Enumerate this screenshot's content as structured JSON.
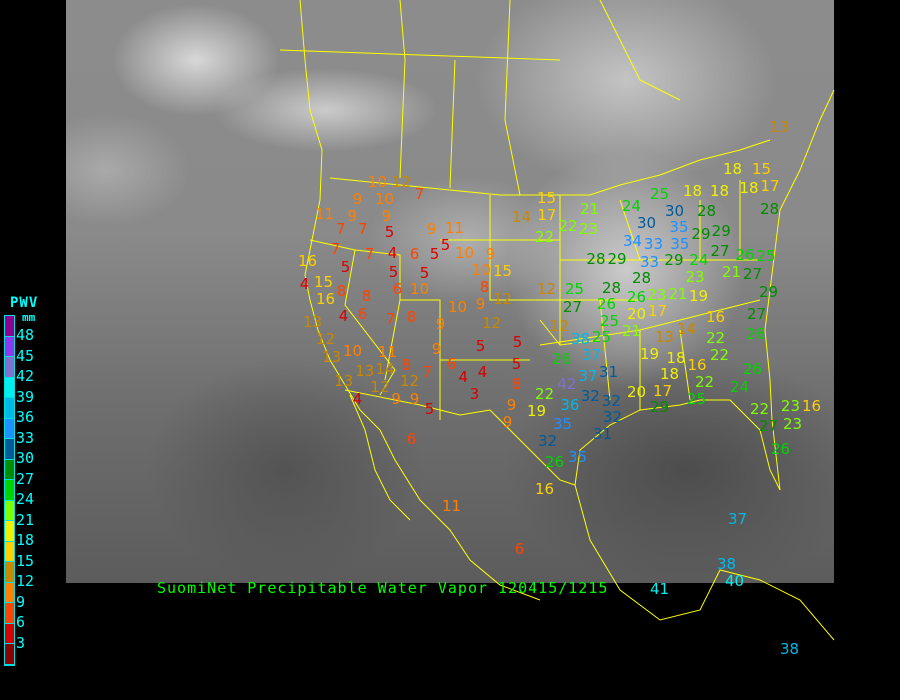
{
  "caption": "SuomiNet Precipitable Water Vapor 120415/1215",
  "legend": {
    "title": "PWV",
    "unit": "mm",
    "ticks": [
      "48",
      "45",
      "42",
      "39",
      "36",
      "33",
      "30",
      "27",
      "24",
      "21",
      "18",
      "15",
      "12",
      "9",
      "6",
      "3"
    ],
    "colors": [
      "#900090",
      "#9038f0",
      "#8070d0",
      "#00f0f0",
      "#00b8e8",
      "#2090ff",
      "#005a98",
      "#008c00",
      "#00d400",
      "#80ff00",
      "#f0f000",
      "#ffd000",
      "#c88800",
      "#ff8000",
      "#ff4400",
      "#d80000",
      "#900000"
    ]
  },
  "stations": [
    "10",
    "12",
    "7",
    "9",
    "10",
    "9",
    "11",
    "9",
    "7",
    "7",
    "5",
    "7",
    "4",
    "6",
    "5",
    "7",
    "9",
    "11",
    "5",
    "10",
    "9",
    "16",
    "5",
    "5",
    "5",
    "10",
    "6",
    "15",
    "4",
    "16",
    "8",
    "8",
    "10",
    "15",
    "8",
    "10",
    "9",
    "12",
    "4",
    "6",
    "7",
    "8",
    "12",
    "9",
    "13",
    "12",
    "10",
    "13",
    "11",
    "14",
    "8",
    "9",
    "5",
    "5",
    "5",
    "6",
    "4",
    "4",
    "3",
    "7",
    "12",
    "13",
    "12",
    "13",
    "4",
    "9",
    "9",
    "5",
    "8",
    "9",
    "9",
    "19",
    "22",
    "6",
    "11",
    "6",
    "16",
    "15",
    "17",
    "14",
    "22",
    "22",
    "23",
    "21",
    "24",
    "25",
    "30",
    "30",
    "35",
    "35",
    "28",
    "28",
    "34",
    "33",
    "29",
    "29",
    "29",
    "24",
    "23",
    "27",
    "21",
    "26",
    "25",
    "27",
    "28",
    "29",
    "33",
    "28",
    "12",
    "25",
    "27",
    "28",
    "26",
    "26",
    "23",
    "21",
    "19",
    "29",
    "20",
    "17",
    "12",
    "25",
    "25",
    "21",
    "16",
    "14",
    "13",
    "22",
    "22",
    "27",
    "26",
    "38",
    "37",
    "26",
    "19",
    "18",
    "31",
    "37",
    "42",
    "18",
    "16",
    "22",
    "26",
    "20",
    "17",
    "25",
    "24",
    "32",
    "36",
    "32",
    "29",
    "22",
    "23",
    "16",
    "35",
    "32",
    "31",
    "27",
    "23",
    "32",
    "26",
    "35",
    "26",
    "18",
    "15",
    "18",
    "18",
    "17",
    "13",
    "18",
    "37",
    "38",
    "40",
    "41",
    "38"
  ]
}
